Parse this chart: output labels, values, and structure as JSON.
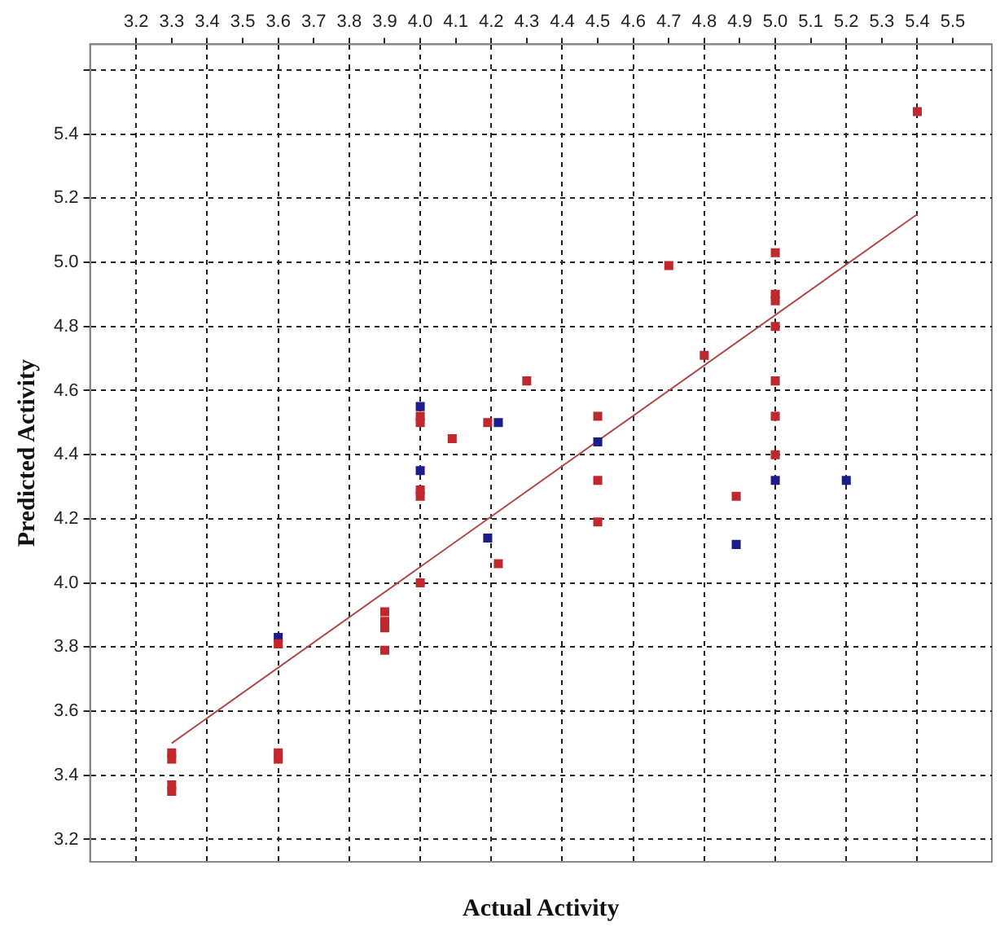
{
  "chart_data": {
    "type": "scatter",
    "xlabel": "Actual Activity",
    "ylabel": "Predicted Activity",
    "xlim": [
      3.07,
      5.61
    ],
    "ylim": [
      3.13,
      5.68
    ],
    "xticks": [
      3.2,
      3.3,
      3.4,
      3.5,
      3.6,
      3.7,
      3.8,
      3.9,
      {
        "value": 4,
        "label": "4.0"
      },
      4.1,
      4.2,
      4.3,
      4.4,
      4.5,
      4.6,
      4.7,
      4.8,
      4.9,
      {
        "value": 5,
        "label": "5.0"
      },
      5.1,
      5.2,
      5.3,
      5.4,
      5.5
    ],
    "yticks": [
      3.2,
      3.4,
      3.6,
      3.8,
      {
        "value": 4,
        "label": "4.0"
      },
      4.2,
      4.4,
      4.6,
      4.8,
      {
        "value": 5,
        "label": "5.0"
      },
      5.2,
      5.4,
      {
        "value": 5.6,
        "label": null
      }
    ],
    "grid": true,
    "legend": false,
    "marker": "square",
    "series": [
      {
        "color": "#c0282d",
        "x": [
          3.3,
          3.3,
          3.3,
          3.3,
          3.6,
          3.6,
          3.6,
          3.9,
          3.9,
          3.9,
          3.9,
          4.0,
          4.0,
          4.0,
          4.0,
          4.0,
          4.09,
          4.19,
          4.22,
          4.3,
          4.5,
          4.5,
          4.5,
          4.7,
          4.8,
          4.89,
          5.0,
          5.0,
          5.0,
          5.0,
          5.0,
          5.0,
          5.0,
          5.4
        ],
        "values": [
          3.45,
          3.47,
          3.35,
          3.37,
          3.45,
          3.47,
          3.81,
          3.86,
          3.88,
          3.91,
          3.79,
          4.0,
          4.27,
          4.29,
          4.52,
          4.5,
          4.45,
          4.5,
          4.06,
          4.63,
          4.52,
          4.32,
          4.19,
          4.99,
          4.71,
          4.27,
          5.03,
          4.9,
          4.88,
          4.8,
          4.63,
          4.52,
          4.4,
          5.47
        ]
      },
      {
        "color": "#1c1c8a",
        "x": [
          3.6,
          4.0,
          4.0,
          4.22,
          4.19,
          4.5,
          4.89,
          5.0,
          5.2
        ],
        "values": [
          3.83,
          4.55,
          4.35,
          4.5,
          4.14,
          4.44,
          4.12,
          4.32,
          4.32
        ]
      },
      {
        "type": "line",
        "color": "#b04848",
        "marker": "none",
        "x": [
          3.3,
          5.4
        ],
        "values": [
          3.5,
          5.15
        ]
      }
    ]
  }
}
